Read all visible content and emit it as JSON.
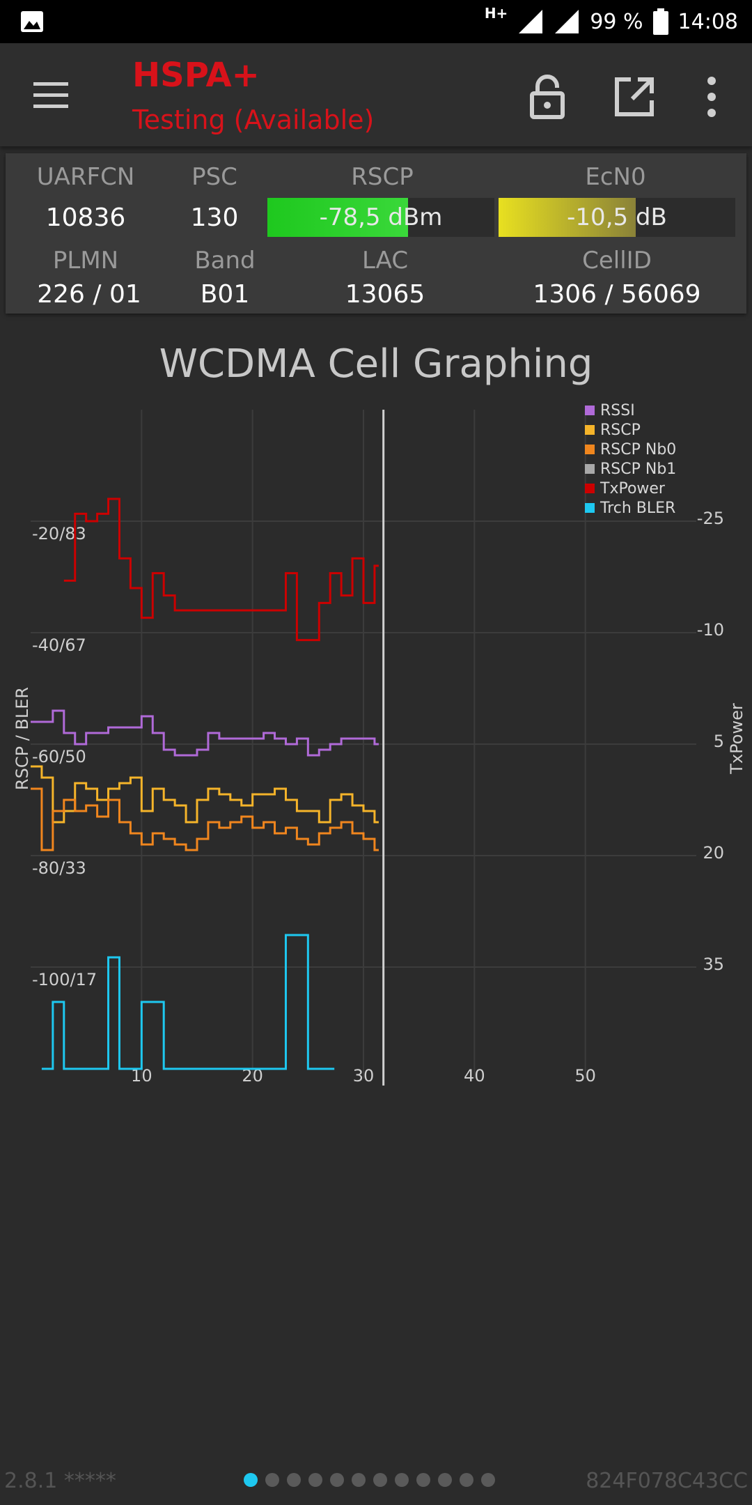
{
  "status_bar": {
    "network_type": "H+",
    "battery_percent": "99 %",
    "time": "14:08",
    "left_icon": "image-notification-icon"
  },
  "app_bar": {
    "title": "HSPA+",
    "subtitle": "Testing (Available)",
    "menu_icon": "menu-icon",
    "lock_icon": "lock-open-icon",
    "open_icon": "open-in-new-icon",
    "more_icon": "more-vert-icon"
  },
  "info_panel": {
    "uarfcn_label": "UARFCN",
    "uarfcn_value": "10836",
    "psc_label": "PSC",
    "psc_value": "130",
    "rscp_label": "RSCP",
    "rscp_value": "-78,5 dBm",
    "rscp_fill": 0.62,
    "ecn0_label": "EcN0",
    "ecn0_value": "-10,5 dB",
    "ecn0_fill": 0.58,
    "plmn_label": "PLMN",
    "plmn_value": "226 / 01",
    "band_label": "Band",
    "band_value": "B01",
    "lac_label": "LAC",
    "lac_value": "13065",
    "cellid_label": "CellID",
    "cellid_value": "1306 / 56069"
  },
  "chart_title": "WCDMA Cell Graphing",
  "chart_data": {
    "type": "line",
    "title": "WCDMA Cell Graphing",
    "ylabel": "RSCP / BLER",
    "y2label": "TxPower",
    "x_ticks": [
      "10",
      "20",
      "30",
      "40",
      "50"
    ],
    "xlim": [
      0,
      60
    ],
    "y_ticks": [
      "-20/83",
      "-40/67",
      "-60/50",
      "-80/33",
      "-100/17"
    ],
    "ylim": [
      -120,
      0
    ],
    "y2_ticks": [
      "-25",
      "-10",
      "5",
      "20",
      "35"
    ],
    "y2lim": [
      -40,
      50
    ],
    "cursor_x": 31.8,
    "grid": true,
    "legend_position": "top-right",
    "series": [
      {
        "name": "RSSI",
        "color": "#b06ad8",
        "x": [
          0,
          1,
          2,
          3,
          4,
          5,
          6,
          7,
          8,
          9,
          10,
          11,
          12,
          13,
          14,
          15,
          16,
          17,
          18,
          19,
          20,
          21,
          22,
          23,
          24,
          25,
          26,
          27,
          28,
          29,
          30,
          31
        ],
        "y": [
          -56,
          -56,
          -54,
          -58,
          -60,
          -58,
          -58,
          -57,
          -57,
          -57,
          -55,
          -58,
          -61,
          -62,
          -62,
          -61,
          -58,
          -59,
          -59,
          -59,
          -59,
          -58,
          -59,
          -60,
          -59,
          -62,
          -61,
          -60,
          -59,
          -59,
          -59,
          -60
        ]
      },
      {
        "name": "RSCP",
        "color": "#f5b42a",
        "x": [
          0,
          1,
          2,
          3,
          4,
          5,
          6,
          7,
          8,
          9,
          10,
          11,
          12,
          13,
          14,
          15,
          16,
          17,
          18,
          19,
          20,
          21,
          22,
          23,
          24,
          25,
          26,
          27,
          28,
          29,
          30,
          31
        ],
        "y": [
          -64,
          -66,
          -74,
          -72,
          -67,
          -68,
          -70,
          -68,
          -67,
          -66,
          -72,
          -68,
          -70,
          -71,
          -74,
          -70,
          -68,
          -69,
          -70,
          -71,
          -69,
          -69,
          -68,
          -70,
          -72,
          -72,
          -74,
          -70,
          -69,
          -71,
          -72,
          -74
        ]
      },
      {
        "name": "RSCP Nb0",
        "color": "#f0861e",
        "x": [
          0,
          1,
          2,
          3,
          4,
          5,
          6,
          7,
          8,
          9,
          10,
          11,
          12,
          13,
          14,
          15,
          16,
          17,
          18,
          19,
          20,
          21,
          22,
          23,
          24,
          25,
          26,
          27,
          28,
          29,
          30,
          31
        ],
        "y": [
          -68,
          -79,
          -72,
          -70,
          -72,
          -71,
          -73,
          -70,
          -74,
          -76,
          -78,
          -76,
          -77,
          -78,
          -79,
          -77,
          -74,
          -75,
          -74,
          -73,
          -75,
          -74,
          -76,
          -75,
          -77,
          -78,
          -76,
          -75,
          -74,
          -76,
          -77,
          -79
        ]
      },
      {
        "name": "RSCP Nb1",
        "color": "#a8a8a8",
        "x": [],
        "y": []
      },
      {
        "name": "TxPower",
        "color": "#cc0000",
        "x": [
          3,
          4,
          5,
          6,
          7,
          8,
          9,
          10,
          11,
          12,
          13,
          23,
          24,
          25,
          26,
          27,
          28,
          29,
          30,
          31
        ],
        "y": [
          -17,
          -26,
          -25,
          -26,
          -28,
          -20,
          -16,
          -12,
          -18,
          -15,
          -13,
          -18,
          -9,
          -9,
          -14,
          -18,
          -15,
          -20,
          -14,
          -19
        ]
      },
      {
        "name": "Trch BLER",
        "color": "#1ec8f0",
        "x": [
          1,
          2,
          3,
          4,
          5,
          6,
          7,
          8,
          9,
          10,
          11,
          12,
          13,
          14,
          15,
          16,
          17,
          18,
          19,
          20,
          21,
          22,
          23,
          24,
          25,
          26,
          27
        ],
        "y": [
          0,
          12,
          0,
          0,
          0,
          0,
          20,
          0,
          0,
          12,
          12,
          0,
          0,
          0,
          0,
          0,
          0,
          0,
          0,
          0,
          0,
          0,
          24,
          24,
          0,
          0,
          0
        ]
      }
    ]
  },
  "footer": {
    "version": "2.8.1 *****",
    "device_id": "824F078C43CC",
    "page_count": 12,
    "active_page": 0
  },
  "colors": {
    "title_red": "#d8121a",
    "rscp_green": "#2bd32b",
    "ecn0_yellow": "#d8d828",
    "page_dot_active": "#1ec8f0"
  }
}
